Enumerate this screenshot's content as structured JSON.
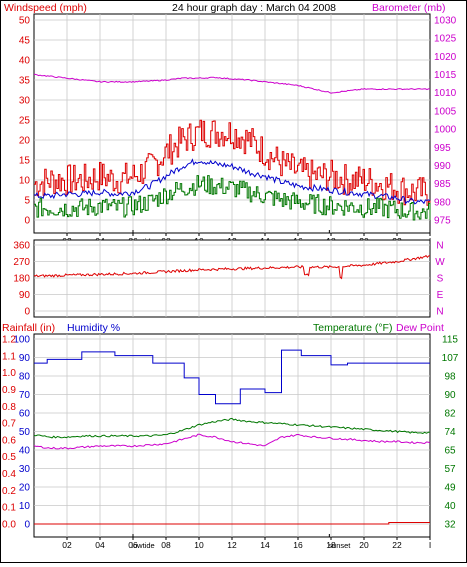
{
  "colors": {
    "red": "#dd0000",
    "magenta": "#cc00cc",
    "blue": "#0000cc",
    "green": "#007700",
    "grid": "#c8c8c8",
    "axis": "#000000"
  },
  "header": {
    "left_label": "Windspeed (mph)",
    "center_title": "24 hour graph day : March 04 2008",
    "right_label": "Barometer (mb)"
  },
  "bottom_header": {
    "rainfall_label": "Rainfall (in)",
    "humidity_label": "Humidity %",
    "temperature_label": "Temperature (°F)",
    "dewpoint_label": "Dew Point"
  },
  "x_axis": {
    "ticks": [
      "02",
      "04",
      "06",
      "08",
      "10",
      "12",
      "14",
      "16",
      "18",
      "20",
      "22",
      "I"
    ],
    "events_top": [
      {
        "label": "lowtide",
        "hour": 6.0
      },
      {
        "label": "sunset",
        "hour": 17.9
      }
    ],
    "events_bottom": [
      {
        "label": "lowtide",
        "hour": 6.0
      },
      {
        "label": "sunset",
        "hour": 17.9
      }
    ]
  },
  "chart_data": [
    {
      "type": "line",
      "panel": "wind-barometer",
      "x_range_hours": [
        0,
        24
      ],
      "y_left": {
        "ylim": [
          0,
          50
        ],
        "ticks": [
          "0",
          "5",
          "10",
          "15",
          "20",
          "25",
          "30",
          "35",
          "40",
          "45",
          "50"
        ]
      },
      "y_right": {
        "ylim": [
          975,
          1030
        ],
        "ticks": [
          "975",
          "980",
          "985",
          "990",
          "995",
          "1000",
          "1005",
          "1010",
          "1015",
          "1020",
          "1025",
          "1030"
        ]
      },
      "series": [
        {
          "name": "Windspeed (mph)",
          "axis": "left",
          "style": "gust",
          "color": "#dd0000",
          "x": [
            0,
            1,
            2,
            3,
            4,
            5,
            6,
            7,
            8,
            9,
            10,
            11,
            12,
            13,
            14,
            15,
            16,
            17,
            18,
            19,
            20,
            21,
            22,
            23,
            24
          ],
          "y": [
            9,
            10,
            10,
            10,
            11,
            10,
            11,
            13,
            17,
            20,
            22,
            22,
            22,
            20,
            17,
            14,
            12,
            11,
            11,
            10,
            10,
            9,
            8,
            7,
            7
          ]
        },
        {
          "axis": "left",
          "style": "average",
          "color": "#0000cc",
          "x": [
            0,
            1,
            2,
            3,
            4,
            5,
            6,
            7,
            8,
            9,
            10,
            11,
            12,
            13,
            14,
            15,
            16,
            17,
            18,
            19,
            20,
            21,
            22,
            23,
            24
          ],
          "y": [
            6,
            6,
            6.5,
            6.5,
            7,
            6.5,
            7,
            8.5,
            11,
            13.5,
            15,
            14,
            13.5,
            12,
            11,
            9.5,
            8.5,
            8,
            7.5,
            7,
            6.5,
            6,
            5.5,
            4.5,
            4.5
          ]
        },
        {
          "axis": "left",
          "style": "lull",
          "color": "#007700",
          "x": [
            0,
            1,
            2,
            3,
            4,
            5,
            6,
            7,
            8,
            9,
            10,
            11,
            12,
            13,
            14,
            15,
            16,
            17,
            18,
            19,
            20,
            21,
            22,
            23,
            24
          ],
          "y": [
            3,
            3,
            3,
            3,
            3.5,
            3,
            3.5,
            4.5,
            6.5,
            8,
            9,
            8.5,
            8,
            7,
            6,
            5,
            4.5,
            4,
            3.5,
            3.5,
            3,
            3,
            2.5,
            2,
            2
          ]
        },
        {
          "name": "Barometer (mb)",
          "axis": "right",
          "color": "#cc00cc",
          "x": [
            0,
            1,
            2,
            3,
            4,
            5,
            6,
            7,
            8,
            9,
            10,
            11,
            12,
            13,
            14,
            15,
            16,
            17,
            18,
            19,
            20,
            21,
            22,
            23,
            24
          ],
          "y": [
            1015,
            1014.5,
            1014,
            1013.5,
            1013,
            1013,
            1013,
            1013.2,
            1013.5,
            1014,
            1014,
            1014.2,
            1013.8,
            1013.5,
            1013,
            1012.5,
            1012,
            1011,
            1010,
            1010.5,
            1011,
            1011,
            1011,
            1011,
            1011
          ]
        }
      ]
    },
    {
      "type": "scatter",
      "panel": "wind-direction",
      "x_range_hours": [
        0,
        24
      ],
      "y_left": {
        "ylim": [
          0,
          360
        ],
        "ticks": [
          "0",
          "90",
          "180",
          "270",
          "360"
        ]
      },
      "y_right_labels": [
        "N",
        "W",
        "S",
        "E",
        "N"
      ],
      "series": [
        {
          "name": "Wind direction",
          "color": "#dd0000",
          "x": [
            0,
            2,
            4,
            6,
            8,
            10,
            12,
            14,
            16,
            18,
            20,
            22,
            24
          ],
          "y": [
            190,
            195,
            200,
            205,
            215,
            225,
            230,
            235,
            240,
            240,
            250,
            270,
            300
          ]
        }
      ]
    },
    {
      "type": "line",
      "panel": "rain-humidity-temperature",
      "x_range_hours": [
        0,
        24
      ],
      "y_left_humidity": {
        "ylim": [
          0,
          100
        ],
        "ticks": [
          "0",
          "10",
          "20",
          "30",
          "40",
          "50",
          "60",
          "70",
          "80",
          "90",
          "100"
        ]
      },
      "y_left_rain": {
        "ylim": [
          0,
          1.2
        ],
        "ticks": [
          "0.0",
          "0.1",
          "0.2",
          "0.4",
          "0.5",
          "0.6",
          "0.7",
          "0.8",
          "0.9",
          "1.0",
          "1.1",
          "1.2"
        ]
      },
      "y_right": {
        "ylim": [
          32,
          115
        ],
        "ticks": [
          "32",
          "40",
          "49",
          "57",
          "65",
          "74",
          "82",
          "90",
          "98",
          "107",
          "115"
        ]
      },
      "series": [
        {
          "name": "Humidity %",
          "axis": "humidity",
          "color": "#0000cc",
          "x": [
            0,
            0.8,
            0.8,
            2.9,
            2.9,
            4.9,
            4.9,
            7.2,
            7.2,
            9.1,
            9.1,
            10.0,
            10.0,
            11.0,
            11.0,
            12.5,
            12.5,
            14.0,
            14.0,
            15.0,
            15.0,
            16.2,
            16.2,
            18.0,
            18.0,
            19.0,
            19.0,
            24
          ],
          "y": [
            87,
            87,
            89,
            89,
            93,
            93,
            91,
            91,
            87,
            87,
            79,
            79,
            70,
            70,
            65,
            65,
            73,
            73,
            71,
            71,
            94,
            94,
            91,
            91,
            86,
            86,
            87,
            87
          ]
        },
        {
          "name": "Temperature (°F)",
          "axis": "right",
          "color": "#007700",
          "x": [
            0,
            1,
            2,
            3,
            4,
            5,
            6,
            7,
            8,
            9,
            10,
            11,
            12,
            13,
            14,
            15,
            16,
            17,
            18,
            19,
            20,
            21,
            22,
            23,
            24
          ],
          "y": [
            72,
            71,
            71,
            71.5,
            71.5,
            71.5,
            71.5,
            71.5,
            72,
            74,
            76.5,
            78,
            79,
            78,
            77.5,
            77,
            76.5,
            76,
            75.5,
            75,
            74.5,
            74,
            73.5,
            73,
            73
          ]
        },
        {
          "name": "Dew Point",
          "axis": "right",
          "color": "#cc00cc",
          "x": [
            0,
            1,
            2,
            3,
            4,
            5,
            6,
            7,
            8,
            9,
            10,
            11,
            12,
            13,
            14,
            15,
            16,
            17,
            18,
            19,
            20,
            21,
            22,
            23,
            24
          ],
          "y": [
            67,
            66,
            66,
            66.5,
            67,
            67,
            67,
            67.5,
            68,
            70,
            72,
            71,
            69,
            68,
            67,
            71,
            72,
            71,
            70.5,
            70,
            69.5,
            69,
            69,
            68.5,
            68.5
          ]
        },
        {
          "name": "Rainfall (in)",
          "axis": "rain",
          "color": "#dd0000",
          "x": [
            0,
            21.5,
            21.5,
            24
          ],
          "y": [
            0,
            0,
            0.01,
            0.01
          ]
        }
      ]
    }
  ]
}
